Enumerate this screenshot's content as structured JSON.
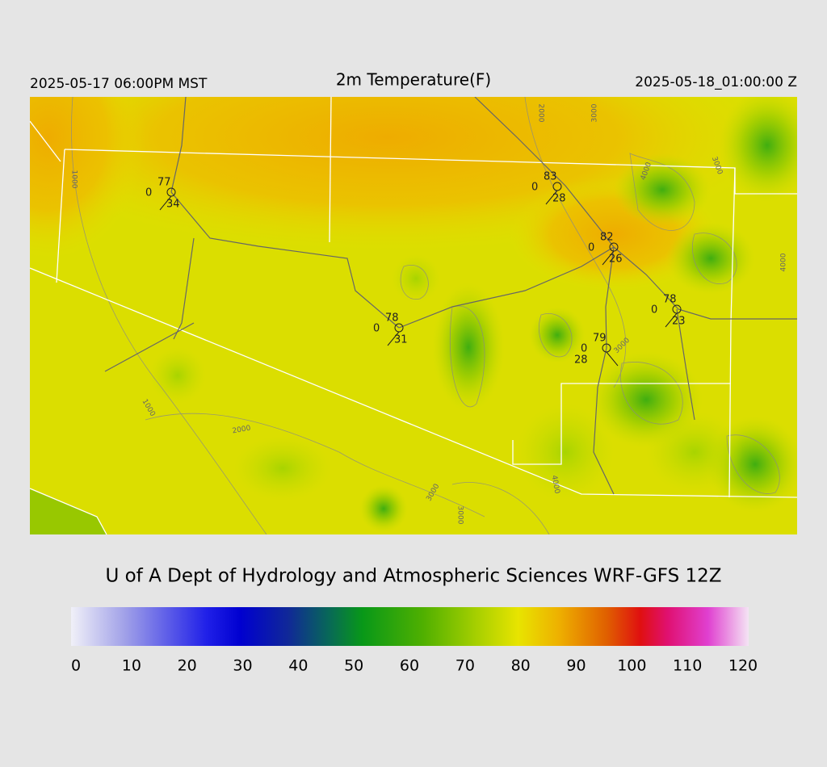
{
  "header": {
    "valid_local": "2025-05-17 06:00PM MST",
    "title": "2m Temperature(F)",
    "valid_utc": "2025-05-18_01:00:00 Z"
  },
  "stations": [
    {
      "top": "77",
      "left": "0",
      "bottom": "34"
    },
    {
      "top": "83",
      "left": "0",
      "bottom": "28"
    },
    {
      "top": "82",
      "left": "0",
      "bottom": "26"
    },
    {
      "top": "78",
      "left": "0",
      "bottom": "31"
    },
    {
      "top": "78",
      "left": "0",
      "bottom": "23"
    },
    {
      "top": "79",
      "left": "0",
      "bottom": "28"
    }
  ],
  "contour_labels": [
    "1000",
    "2000",
    "3000",
    "4000",
    "3000",
    "4000",
    "3000",
    "1000",
    "2000",
    "3000",
    "3000",
    "4000"
  ],
  "credit": "U of A Dept of Hydrology and Atmospheric Sciences WRF-GFS 12Z",
  "colorbar": {
    "ticks": [
      0,
      10,
      20,
      30,
      40,
      50,
      60,
      70,
      80,
      90,
      100,
      110,
      120
    ]
  }
}
